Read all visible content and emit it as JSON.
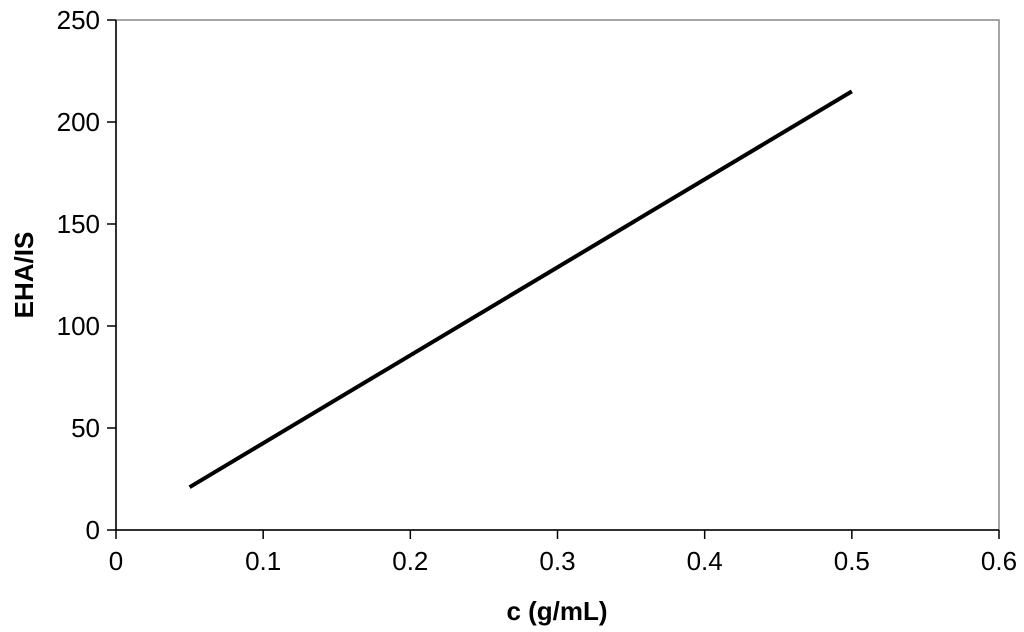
{
  "chart_data": {
    "type": "line",
    "title": "",
    "xlabel": "c (g/mL)",
    "ylabel": "EHA/IS",
    "xlim": [
      0,
      0.6
    ],
    "ylim": [
      0,
      250
    ],
    "xticks": [
      0,
      0.1,
      0.2,
      0.3,
      0.4,
      0.5,
      0.6
    ],
    "yticks": [
      0,
      50,
      100,
      150,
      200,
      250
    ],
    "xtick_labels": [
      "0",
      "0.1",
      "0.2",
      "0.3",
      "0.4",
      "0.5",
      "0.6"
    ],
    "ytick_labels": [
      "0",
      "50",
      "100",
      "150",
      "200",
      "250"
    ],
    "grid": false,
    "legend": "none",
    "series": [
      {
        "color": "#000000",
        "x": [
          0.05,
          0.5
        ],
        "y": [
          21,
          215
        ]
      }
    ]
  }
}
